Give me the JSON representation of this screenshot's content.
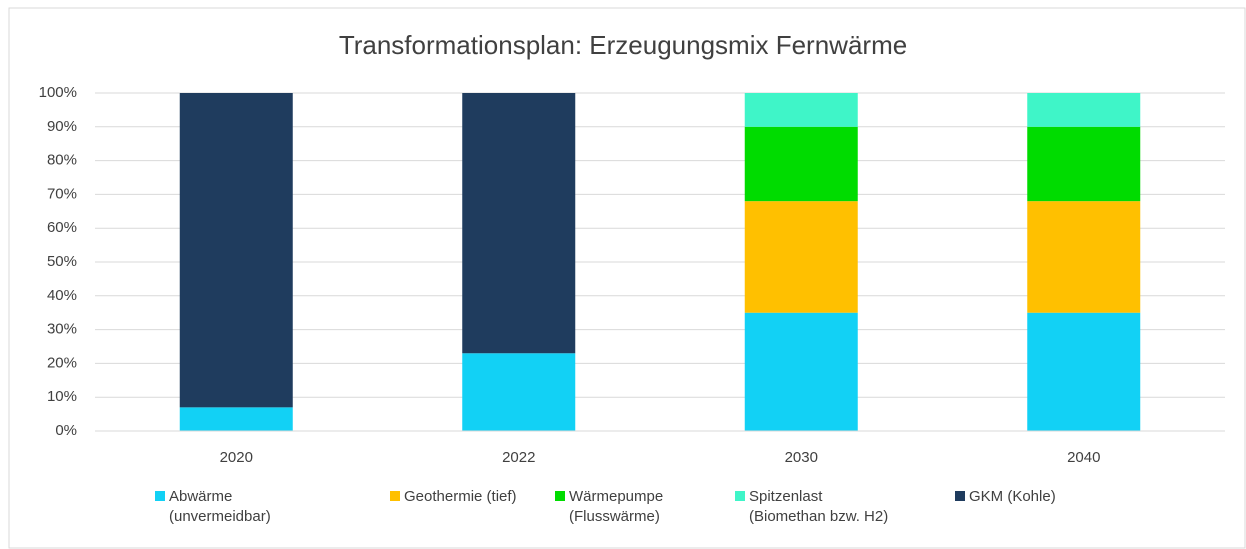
{
  "chart_data": {
    "type": "stacked_bar",
    "title": "Transformationsplan: Erzeugungsmix Fernwärme",
    "categories": [
      "2020",
      "2022",
      "2030",
      "2040"
    ],
    "series": [
      {
        "name": "Abwärme\n(unvermeidbar)",
        "color": "#12d1f5",
        "values": [
          7,
          23,
          35,
          35
        ]
      },
      {
        "name": "Geothermie (tief)",
        "color": "#ffc000",
        "values": [
          0,
          0,
          33,
          33
        ]
      },
      {
        "name": "Wärmepumpe\n(Flusswärme)",
        "color": "#00dc00",
        "values": [
          0,
          0,
          22,
          22
        ]
      },
      {
        "name": "Spitzenlast\n(Biomethan bzw. H2)",
        "color": "#3ff5c8",
        "values": [
          0,
          0,
          10,
          10
        ]
      },
      {
        "name": "GKM (Kohle)",
        "color": "#1f3c5e",
        "values": [
          93,
          77,
          0,
          0
        ]
      }
    ],
    "ylim": [
      0,
      100
    ],
    "yticks": [
      {
        "value": 0,
        "label": "0%"
      },
      {
        "value": 10,
        "label": "10%"
      },
      {
        "value": 20,
        "label": "20%"
      },
      {
        "value": 30,
        "label": "30%"
      },
      {
        "value": 40,
        "label": "40%"
      },
      {
        "value": 50,
        "label": "50%"
      },
      {
        "value": 60,
        "label": "60%"
      },
      {
        "value": 70,
        "label": "70%"
      },
      {
        "value": 80,
        "label": "80%"
      },
      {
        "value": 90,
        "label": "90%"
      },
      {
        "value": 100,
        "label": "100%"
      }
    ],
    "grid": true,
    "legend": "bottom"
  }
}
